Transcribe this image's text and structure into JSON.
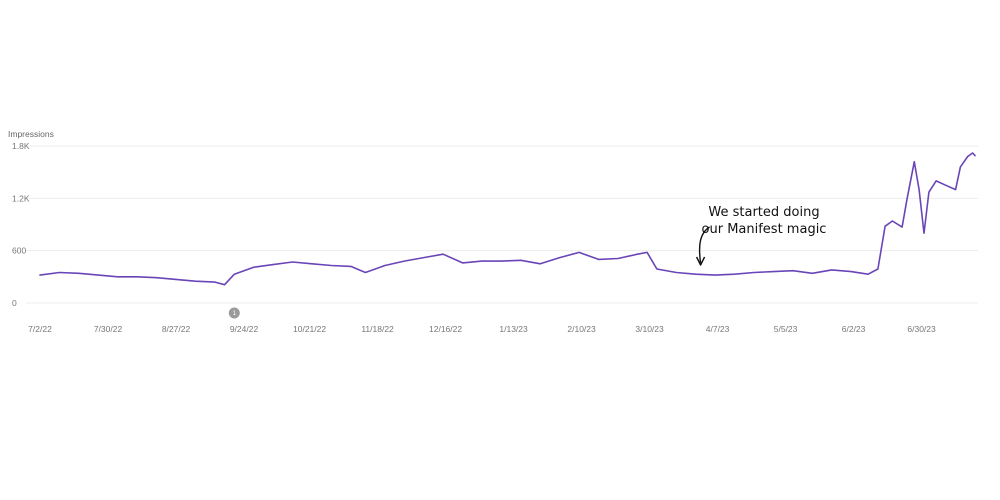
{
  "chart_data": {
    "type": "line",
    "ylabel": "Impressions",
    "ylim": [
      0,
      1800
    ],
    "y_ticks": [
      {
        "value": 0,
        "label": "0"
      },
      {
        "value": 600,
        "label": "600"
      },
      {
        "value": 1200,
        "label": "1.2K"
      },
      {
        "value": 1800,
        "label": "1.8K"
      }
    ],
    "x_tick_labels": [
      "7/2/22",
      "7/30/22",
      "8/27/22",
      "9/24/22",
      "10/21/22",
      "11/18/22",
      "12/16/22",
      "1/13/23",
      "2/10/23",
      "3/10/23",
      "4/7/23",
      "5/5/23",
      "6/2/23",
      "6/30/23"
    ],
    "x_start": "7/2/22",
    "x_end": "7/22/23",
    "grid": true,
    "annotation": {
      "lines": [
        "We started doing",
        "our Manifest magic"
      ],
      "date": "3/31/23"
    },
    "marker": {
      "label": "1",
      "date": "9/20/22"
    },
    "color": "#6a45b8",
    "series": [
      {
        "x": [
          "7/2/22",
          "7/10/22",
          "7/18/22",
          "7/26/22",
          "8/3/22",
          "8/11/22",
          "8/19/22",
          "8/27/22",
          "9/4/22",
          "9/12/22",
          "9/16/22",
          "9/20/22",
          "9/28/22",
          "10/6/22",
          "10/14/22",
          "10/22/22",
          "10/30/22",
          "11/7/22",
          "11/13/22",
          "11/21/22",
          "11/29/22",
          "12/7/22",
          "12/15/22",
          "12/23/22",
          "12/31/22",
          "1/8/23",
          "1/16/23",
          "1/24/23",
          "2/1/23",
          "2/9/23",
          "2/17/23",
          "2/25/23",
          "3/5/23",
          "3/9/23",
          "3/13/23",
          "3/21/23",
          "3/29/23",
          "4/6/23",
          "4/14/23",
          "4/22/23",
          "4/30/23",
          "5/8/23",
          "5/16/23",
          "5/24/23",
          "6/1/23",
          "6/8/23",
          "6/12/23",
          "6/15/23",
          "6/18/23",
          "6/22/23",
          "6/24/23",
          "6/27/23",
          "6/29/23",
          "7/1/23",
          "7/3/23",
          "7/6/23",
          "7/10/23",
          "7/14/23",
          "7/16/23",
          "7/19/23",
          "7/21/23",
          "7/22/23"
        ],
        "values": [
          320,
          350,
          340,
          320,
          300,
          300,
          290,
          270,
          250,
          240,
          210,
          330,
          410,
          440,
          470,
          450,
          430,
          420,
          350,
          430,
          480,
          520,
          560,
          460,
          480,
          480,
          490,
          450,
          520,
          580,
          500,
          510,
          560,
          580,
          390,
          350,
          330,
          320,
          330,
          350,
          360,
          370,
          340,
          380,
          360,
          330,
          390,
          880,
          940,
          870,
          1190,
          1620,
          1300,
          800,
          1270,
          1400,
          1350,
          1300,
          1560,
          1680,
          1720,
          1690
        ]
      }
    ]
  }
}
